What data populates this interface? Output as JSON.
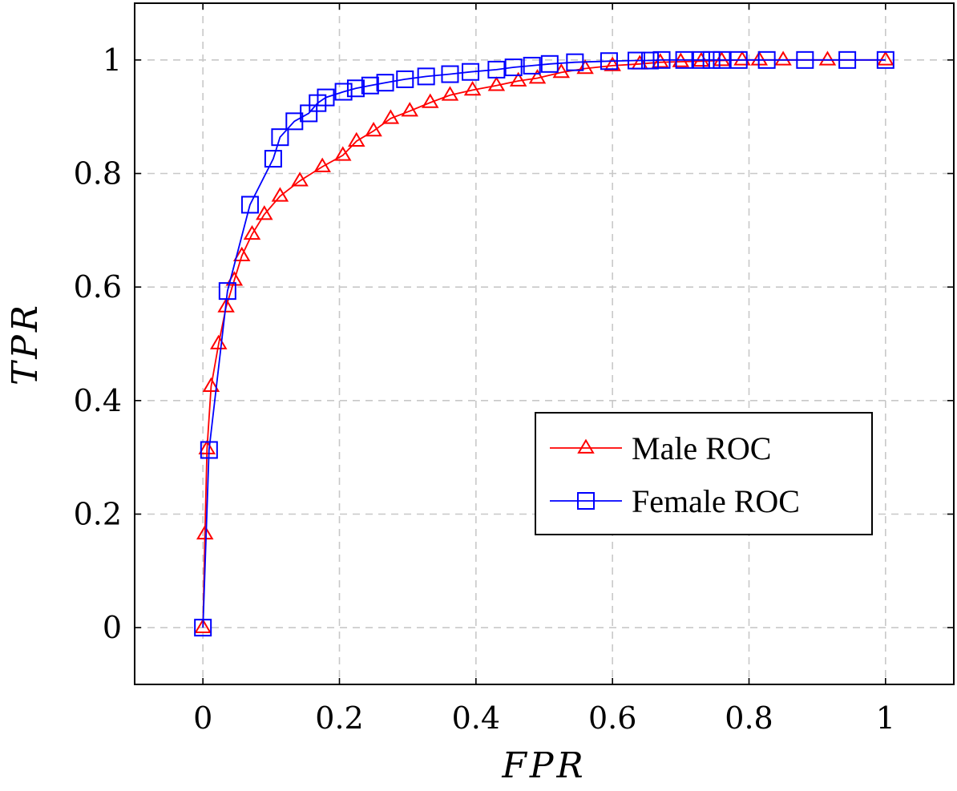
{
  "chart_data": {
    "type": "line",
    "xlabel": "FPR",
    "ylabel": "TPR",
    "xlim": [
      -0.1,
      1.1
    ],
    "ylim": [
      -0.1,
      1.1
    ],
    "xticks": [
      0,
      0.2,
      0.4,
      0.6,
      0.8,
      1
    ],
    "yticks": [
      0,
      0.2,
      0.4,
      0.6,
      0.8,
      1
    ],
    "xtick_labels": [
      "0",
      "0.2",
      "0.4",
      "0.6",
      "0.8",
      "1"
    ],
    "ytick_labels": [
      "0",
      "0.2",
      "0.4",
      "0.6",
      "0.8",
      "1"
    ],
    "grid": true,
    "legend_position": "lower-right",
    "series": [
      {
        "name": "Male ROC",
        "color": "#ff0000",
        "marker": "triangle",
        "x": [
          0,
          0.003,
          0.006,
          0.012,
          0.023,
          0.034,
          0.046,
          0.057,
          0.072,
          0.09,
          0.113,
          0.142,
          0.175,
          0.205,
          0.225,
          0.25,
          0.275,
          0.303,
          0.333,
          0.362,
          0.395,
          0.43,
          0.462,
          0.49,
          0.525,
          0.56,
          0.6,
          0.64,
          0.67,
          0.7,
          0.73,
          0.76,
          0.79,
          0.815,
          0.85,
          0.915,
          1
        ],
        "y": [
          0,
          0.165,
          0.315,
          0.425,
          0.5,
          0.565,
          0.612,
          0.655,
          0.693,
          0.728,
          0.76,
          0.787,
          0.812,
          0.832,
          0.857,
          0.875,
          0.897,
          0.91,
          0.925,
          0.938,
          0.947,
          0.955,
          0.963,
          0.968,
          0.978,
          0.985,
          0.99,
          0.993,
          0.996,
          0.997,
          0.998,
          0.999,
          1,
          1,
          1,
          1,
          1
        ]
      },
      {
        "name": "Female ROC",
        "color": "#0000ff",
        "marker": "square",
        "x": [
          0,
          0.009,
          0.036,
          0.069,
          0.103,
          0.113,
          0.134,
          0.155,
          0.168,
          0.18,
          0.206,
          0.224,
          0.245,
          0.267,
          0.296,
          0.327,
          0.362,
          0.392,
          0.43,
          0.455,
          0.482,
          0.508,
          0.545,
          0.595,
          0.635,
          0.655,
          0.672,
          0.705,
          0.73,
          0.745,
          0.76,
          0.785,
          0.826,
          0.882,
          0.944,
          1
        ],
        "y": [
          0,
          0.313,
          0.593,
          0.745,
          0.826,
          0.864,
          0.892,
          0.906,
          0.924,
          0.934,
          0.944,
          0.95,
          0.955,
          0.96,
          0.966,
          0.971,
          0.975,
          0.979,
          0.983,
          0.987,
          0.99,
          0.993,
          0.996,
          0.998,
          0.999,
          0.999,
          1,
          1,
          1,
          1,
          1,
          1,
          1,
          1,
          1,
          1
        ]
      }
    ]
  }
}
